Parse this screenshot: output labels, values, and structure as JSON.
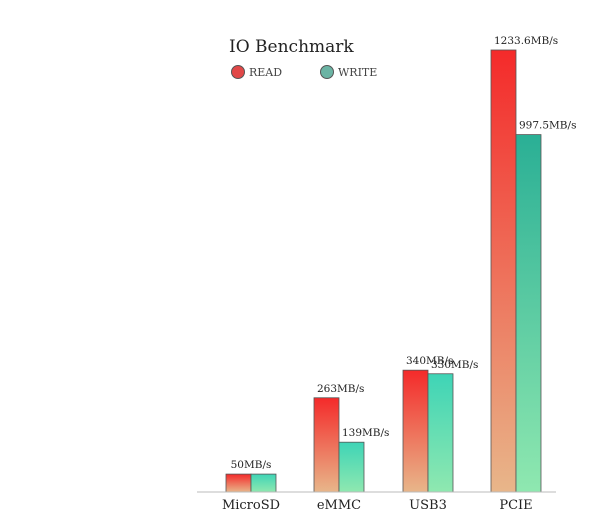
{
  "chart_data": {
    "type": "bar",
    "title": "IO Benchmark",
    "categories": [
      "MicroSD",
      "eMMC",
      "USB3",
      "PCIE"
    ],
    "series": [
      {
        "name": "READ",
        "values": [
          50,
          263,
          340,
          1233.6
        ],
        "labels": [
          "50MB/s",
          "263MB/s",
          "340MB/s",
          "1233.6MB/s"
        ]
      },
      {
        "name": "WRITE",
        "values": [
          50,
          139,
          330,
          997.5
        ],
        "labels": [
          "50MB/s",
          "139MB/s",
          "330MB/s",
          "997.5MB/s"
        ]
      }
    ],
    "ylim": [
      0,
      1233.6
    ],
    "grid": false,
    "legend_position": "top-left",
    "colors": {
      "read_top": "#f42a2a",
      "read_bottom": "#e8b68a",
      "write_top": "#3ed4b6",
      "write_bottom": "#8fe8b0",
      "pcie_write_top": "#2aaf95",
      "read_legend": "#e14848",
      "write_legend": "#6bb4a4",
      "axis": "#bbbbbb",
      "bar_stroke": "#555555"
    }
  }
}
